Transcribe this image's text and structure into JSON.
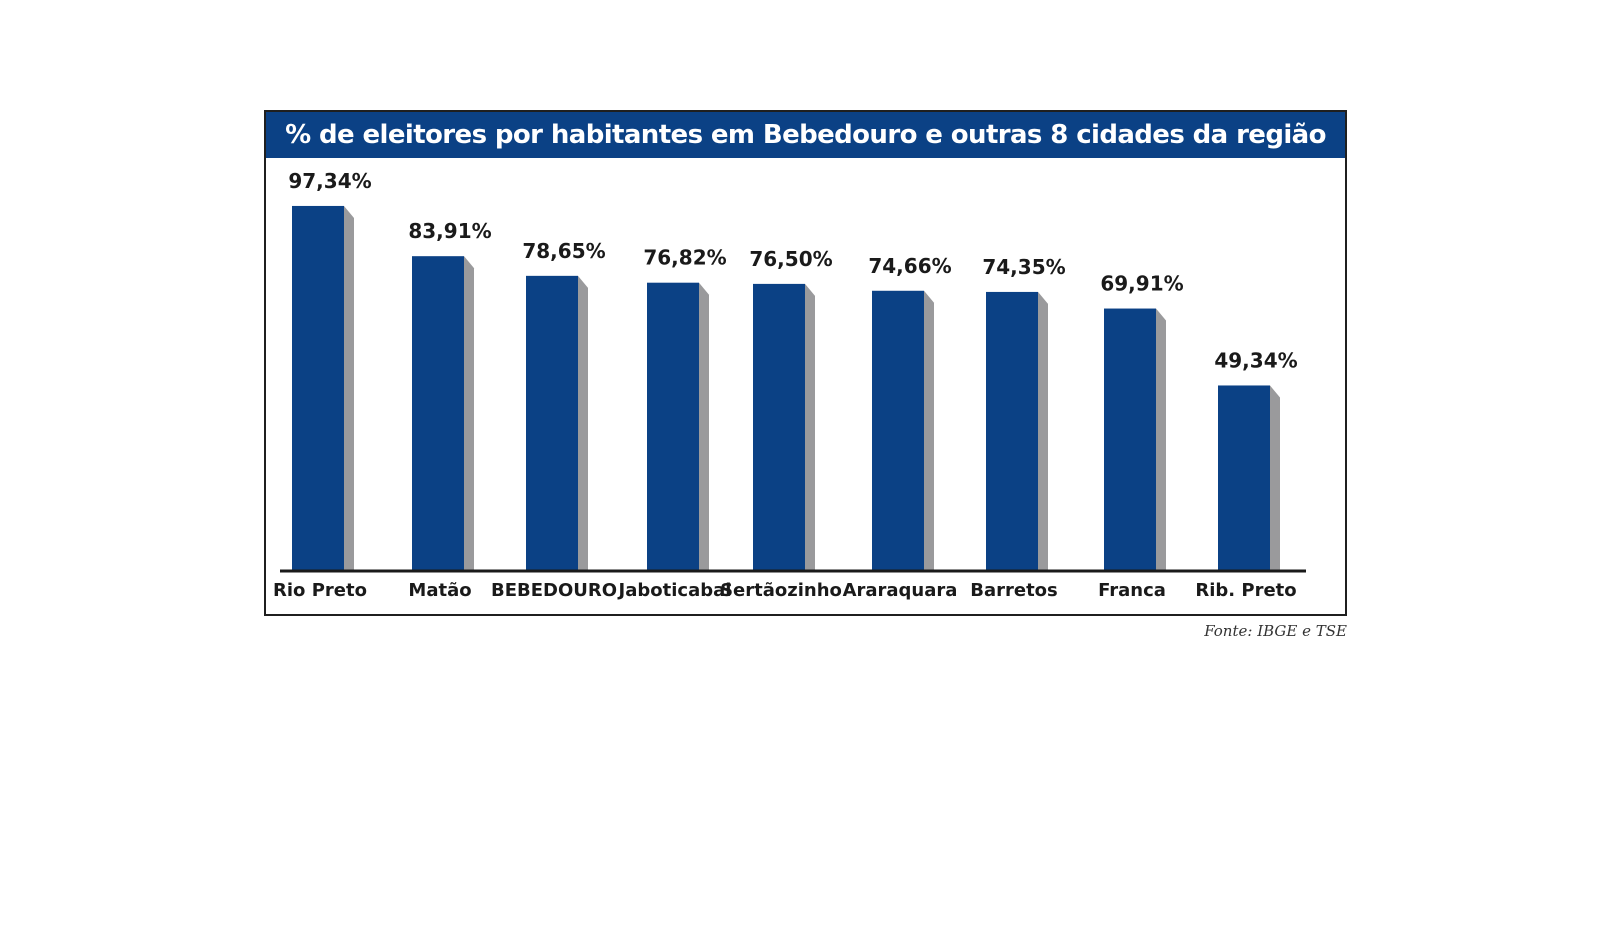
{
  "chart_data": {
    "type": "bar",
    "title": "% de eleitores por habitantes em Bebedouro e outras 8 cidades da região",
    "categories": [
      "Rio Preto",
      "Matão",
      "BEBEDOURO",
      "Jaboticabal",
      "Sertãozinho",
      "Araraquara",
      "Barretos",
      "Franca",
      "Rib. Preto"
    ],
    "values": [
      97.34,
      83.91,
      78.65,
      76.82,
      76.5,
      74.66,
      74.35,
      69.91,
      49.34
    ],
    "value_labels": [
      "97,34%",
      "83,91%",
      "78,65%",
      "76,82%",
      "76,50%",
      "74,66%",
      "74,35%",
      "69,91%",
      "49,34%"
    ],
    "xlabel": "",
    "ylabel": "",
    "ylim": [
      0,
      100
    ],
    "grid": false,
    "colors": {
      "bar": "#0b4185",
      "shadow": "#9a9a9c",
      "title_bg": "#0b4185",
      "baseline": "#1a1a1a"
    }
  },
  "source": "Fonte: IBGE e TSE"
}
